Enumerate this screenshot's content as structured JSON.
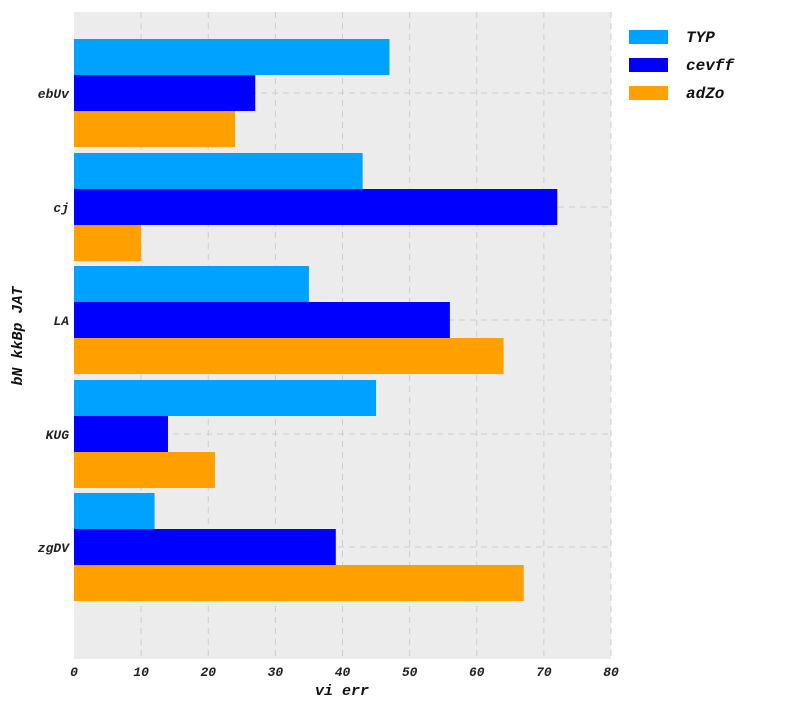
{
  "chart_data": {
    "type": "bar",
    "orientation": "horizontal",
    "categories": [
      "ebUv",
      "cj",
      "LA",
      "KUG",
      "zgDV"
    ],
    "series": [
      {
        "name": "TYP",
        "color": "#00a2ff",
        "values": [
          47,
          43,
          35,
          45,
          12
        ]
      },
      {
        "name": "cevff",
        "color": "#0000ff",
        "values": [
          27,
          72,
          56,
          14,
          39
        ]
      },
      {
        "name": "adZo",
        "color": "#ff9f00",
        "values": [
          24,
          10,
          64,
          21,
          67
        ]
      }
    ],
    "title": "",
    "xlabel": "vi err",
    "ylabel": "bN kkBp JAT",
    "xlim": [
      0,
      80
    ],
    "xticks": [
      0,
      10,
      20,
      30,
      40,
      50,
      60,
      70,
      80
    ],
    "grid": true,
    "legend_position": "top-right outside",
    "colors": {
      "plot_background": "#ececec",
      "grid": "#cccccc"
    }
  }
}
